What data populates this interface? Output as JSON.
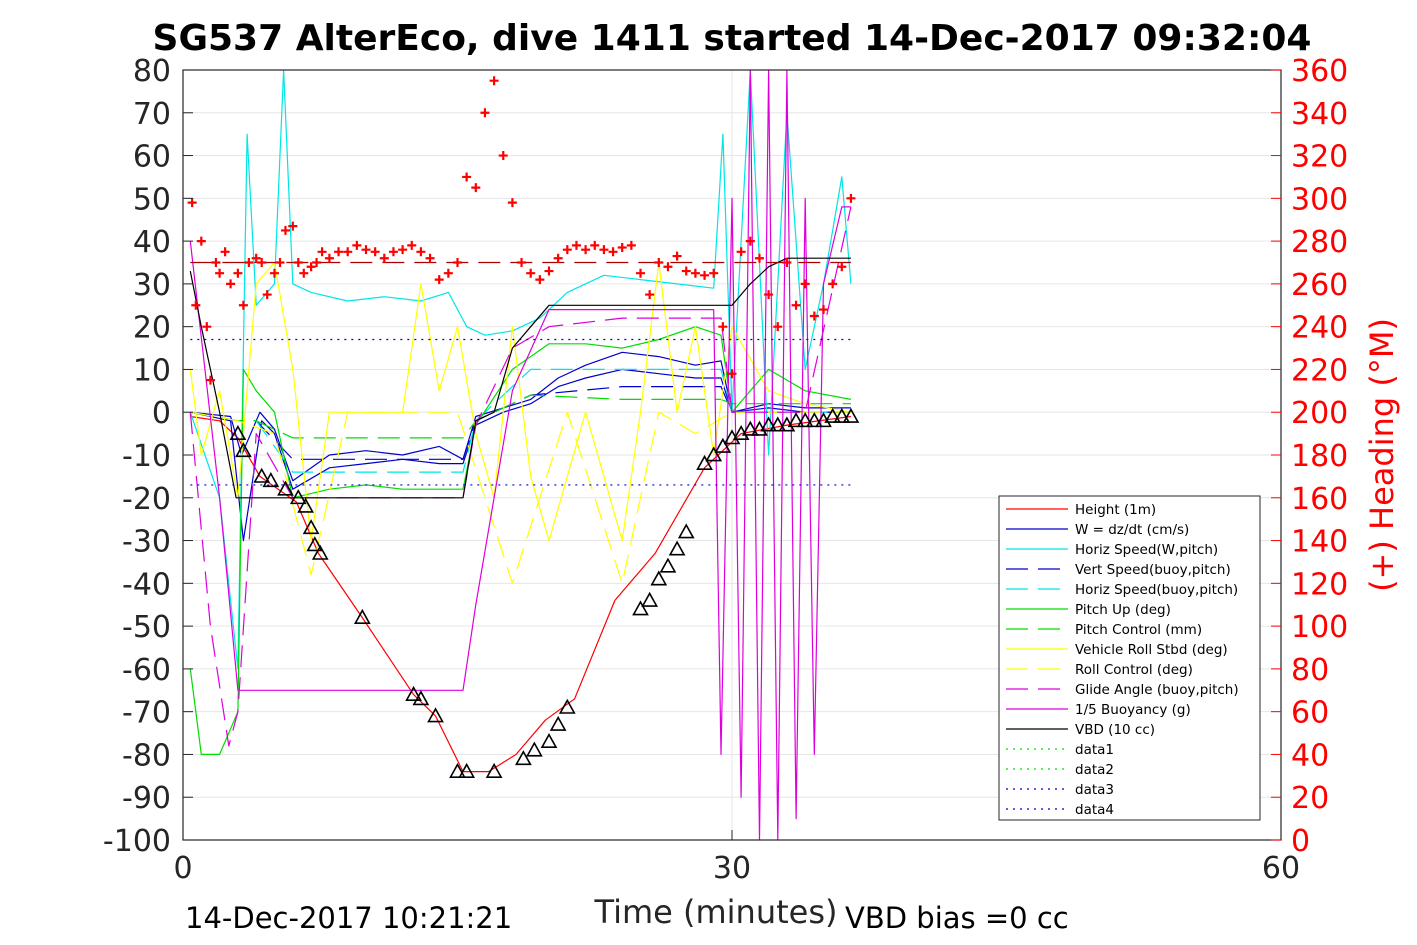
{
  "chart_data": {
    "type": "line",
    "title": "SG537 AlterEco, dive 1411 started 14-Dec-2017 09:32:04",
    "xlabel": "Time (minutes)",
    "ylabel": "",
    "y2label": "(+) Heading (°M)",
    "xlim": [
      0,
      60
    ],
    "ylim": [
      -100,
      80
    ],
    "y2lim": [
      0,
      360
    ],
    "xticks": [
      0,
      30,
      60
    ],
    "yticks": [
      -100,
      -90,
      -80,
      -70,
      -60,
      -50,
      -40,
      -30,
      -20,
      -10,
      0,
      10,
      20,
      30,
      40,
      50,
      60,
      70,
      80
    ],
    "y2ticks": [
      0,
      20,
      40,
      60,
      80,
      100,
      120,
      140,
      160,
      180,
      200,
      220,
      240,
      260,
      280,
      300,
      320,
      340,
      360
    ],
    "footer_left": "14-Dec-2017 10:21:21",
    "footer_right": "VBD bias =0 cc",
    "legend_position": "bottom-right",
    "colors": {
      "right_axis": "#ff0000",
      "height": "#ff0000",
      "w": "#0000cc",
      "horiz_speed": "#00e5e5",
      "pitch": "#00dd00",
      "roll": "#ffff00",
      "glide": "#dd00dd",
      "vbd": "#000000",
      "data12": "#00dd00",
      "data34": "#0000cc"
    },
    "legend": [
      {
        "label": "Height (1m)",
        "color": "#ff0000",
        "style": "solid"
      },
      {
        "label": "W = dz/dt (cm/s)",
        "color": "#0000cc",
        "style": "solid"
      },
      {
        "label": "Horiz Speed(W,pitch)",
        "color": "#00e5e5",
        "style": "solid"
      },
      {
        "label": "Vert Speed(buoy,pitch)",
        "color": "#0000cc",
        "style": "dashed"
      },
      {
        "label": "Horiz Speed(buoy,pitch)",
        "color": "#00e5e5",
        "style": "dashed"
      },
      {
        "label": "Pitch Up (deg)",
        "color": "#00dd00",
        "style": "solid"
      },
      {
        "label": "Pitch Control (mm)",
        "color": "#00dd00",
        "style": "dashed"
      },
      {
        "label": "Vehicle Roll Stbd (deg)",
        "color": "#ffff00",
        "style": "solid"
      },
      {
        "label": "Roll Control (deg)",
        "color": "#ffff00",
        "style": "dashed"
      },
      {
        "label": "Glide Angle (buoy,pitch)",
        "color": "#dd00dd",
        "style": "dashed"
      },
      {
        "label": "1/5 Buoyancy (g)",
        "color": "#dd00dd",
        "style": "solid"
      },
      {
        "label": "VBD (10 cc)",
        "color": "#000000",
        "style": "solid"
      },
      {
        "label": "data1",
        "color": "#00dd00",
        "style": "dotted"
      },
      {
        "label": "data2",
        "color": "#00dd00",
        "style": "dotted"
      },
      {
        "label": "data3",
        "color": "#0000cc",
        "style": "dotted"
      },
      {
        "label": "data4",
        "color": "#0000cc",
        "style": "dotted"
      }
    ],
    "series": [
      {
        "key": "depth_track",
        "color": "#ff0000",
        "style": "solid",
        "x": [
          0.4,
          2.0,
          3.0,
          4.2,
          6.2,
          7.4,
          9.8,
          12.6,
          13.8,
          15.3,
          16.7,
          18.2,
          19.8,
          21.4,
          23.6,
          25.8,
          28.5,
          30.5,
          33.0,
          36.5
        ],
        "y": [
          -1,
          -2,
          -6,
          -15,
          -21,
          -33,
          -48,
          -66,
          -71,
          -84,
          -84,
          -80,
          -72,
          -67,
          -44,
          -33,
          -13,
          -5,
          -3,
          -1
        ]
      },
      {
        "key": "triangle_markers",
        "color": "#000000",
        "style": "markers",
        "x": [
          3.0,
          3.3,
          4.3,
          4.8,
          5.6,
          6.3,
          6.7,
          7.0,
          7.2,
          7.5,
          9.8,
          12.6,
          13.0,
          13.8,
          15.0,
          15.5,
          17.0,
          18.6,
          19.2,
          20.0,
          20.5,
          21.0,
          25.0,
          25.5,
          26.0,
          26.5,
          27.0,
          27.5,
          28.5,
          29.0,
          29.5,
          30.0,
          30.5,
          31.0,
          31.5,
          32.0,
          32.5,
          33.0,
          33.5,
          34.0,
          34.5,
          35.0,
          35.5,
          36.0,
          36.5
        ],
        "y": [
          -5,
          -9,
          -15,
          -16,
          -18,
          -20,
          -22,
          -27,
          -31,
          -33,
          -48,
          -66,
          -67,
          -71,
          -84,
          -84,
          -84,
          -81,
          -79,
          -77,
          -73,
          -69,
          -46,
          -44,
          -39,
          -36,
          -32,
          -28,
          -12,
          -10,
          -8,
          -6,
          -5,
          -4,
          -4,
          -3,
          -3,
          -3,
          -2,
          -2,
          -2,
          -2,
          -1,
          -1,
          -1
        ]
      },
      {
        "key": "w_upper",
        "color": "#0000cc",
        "style": "solid",
        "x": [
          0.4,
          2.6,
          3.2,
          4.2,
          5.0,
          6.0,
          8.0,
          10.0,
          12.0,
          14.0,
          15.3,
          16.0,
          17.5,
          19.0,
          20.5,
          22.0,
          24.0,
          26.0,
          28.0,
          29.4,
          30.0,
          32.0,
          34.0,
          36.5
        ],
        "y": [
          0,
          -1,
          -10,
          0,
          -4,
          -16,
          -10,
          -9,
          -10,
          -8,
          -11,
          -1,
          1,
          3,
          8,
          11,
          14,
          13,
          11,
          12,
          0,
          2,
          1,
          1
        ]
      },
      {
        "key": "w_lower",
        "color": "#0000cc",
        "style": "solid",
        "x": [
          0.4,
          2.6,
          3.3,
          4.3,
          5.0,
          6.0,
          8.0,
          10.0,
          12.0,
          14.0,
          15.3,
          16.0,
          17.5,
          19.0,
          20.5,
          22.0,
          24.0,
          26.0,
          28.0,
          29.4,
          30.0,
          32.0,
          34.0,
          36.5
        ],
        "y": [
          0,
          -2,
          -30,
          -2,
          -5,
          -18,
          -13,
          -12,
          -11,
          -12,
          -12,
          -3,
          0,
          2,
          6,
          8,
          10,
          9,
          8,
          8,
          0,
          1,
          0,
          0
        ]
      },
      {
        "key": "horiz_speed",
        "color": "#00e5e5",
        "style": "solid",
        "x": [
          0.4,
          2.0,
          3.0,
          3.5,
          4.0,
          5.0,
          5.5,
          6.0,
          7.0,
          9.0,
          11.0,
          13.0,
          14.5,
          15.5,
          16.5,
          18.0,
          19.5,
          21.0,
          23.0,
          25.0,
          27.0,
          29.0,
          29.5,
          30.0,
          31.0,
          32.0,
          33.0,
          34.0,
          35.0,
          36.0,
          36.5
        ],
        "y": [
          0,
          -20,
          -60,
          65,
          25,
          30,
          80,
          30,
          28,
          26,
          27,
          26,
          28,
          20,
          18,
          19,
          22,
          28,
          32,
          31,
          30,
          29,
          65,
          0,
          80,
          -10,
          70,
          10,
          30,
          55,
          30
        ]
      },
      {
        "key": "vert_speed_buoy",
        "color": "#0000cc",
        "style": "dashed",
        "x": [
          0.4,
          3.0,
          4.0,
          6.0,
          10.0,
          15.3,
          16.0,
          19.0,
          24.0,
          29.4,
          30.0,
          36.5
        ],
        "y": [
          0,
          -2,
          -2,
          -11,
          -11,
          -11,
          -2,
          4,
          6,
          6,
          0,
          0
        ]
      },
      {
        "key": "horiz_speed_buoy",
        "color": "#00e5e5",
        "style": "dashed",
        "x": [
          0.4,
          3.0,
          4.0,
          6.0,
          10.0,
          15.3,
          16.0,
          19.0,
          24.0,
          29.4,
          30.0,
          36.5
        ],
        "y": [
          0,
          -2,
          -2,
          -14,
          -14,
          -14,
          -2,
          10,
          10,
          10,
          0,
          0
        ]
      },
      {
        "key": "pitch_up",
        "color": "#00dd00",
        "style": "solid",
        "x": [
          0.4,
          1.0,
          2.0,
          3.0,
          3.3,
          4.0,
          5.0,
          6.0,
          8.0,
          10.0,
          12.0,
          14.0,
          15.3,
          16.0,
          18.0,
          20.0,
          22.0,
          24.0,
          26.0,
          28.0,
          29.4,
          30.0,
          32.0,
          34.0,
          36.5
        ],
        "y": [
          -60,
          -80,
          -80,
          -70,
          10,
          5,
          0,
          -20,
          -18,
          -17,
          -18,
          -18,
          -18,
          -3,
          10,
          16,
          16,
          15,
          17,
          20,
          18,
          0,
          10,
          5,
          3
        ]
      },
      {
        "key": "pitch_control",
        "color": "#00dd00",
        "style": "dashed",
        "x": [
          0.4,
          3.0,
          4.0,
          6.0,
          10.0,
          15.3,
          16.0,
          19.0,
          24.0,
          29.4,
          30.0,
          36.5
        ],
        "y": [
          0,
          -2,
          -2,
          -6,
          -6,
          -6,
          -2,
          4,
          3,
          3,
          2,
          2
        ]
      },
      {
        "key": "vehicle_roll",
        "color": "#ffff00",
        "style": "solid",
        "x": [
          0.4,
          1.0,
          2.0,
          3.0,
          4.0,
          5.0,
          6.0,
          7.0,
          8.0,
          10.0,
          12.0,
          13.0,
          14.0,
          15.0,
          16.0,
          17.0,
          18.0,
          19.0,
          20.0,
          22.0,
          24.0,
          25.0,
          26.0,
          27.0,
          28.0,
          29.0,
          30.0,
          32.0,
          34.0,
          36.5
        ],
        "y": [
          10,
          -10,
          5,
          -20,
          30,
          35,
          10,
          -30,
          0,
          0,
          0,
          30,
          5,
          20,
          -5,
          -20,
          20,
          -15,
          -30,
          0,
          -30,
          0,
          35,
          0,
          20,
          -10,
          20,
          5,
          2,
          0
        ]
      },
      {
        "key": "roll_control",
        "color": "#ffff00",
        "style": "dashed",
        "x": [
          0.4,
          3.0,
          5.0,
          7.0,
          9.0,
          15.0,
          18.0,
          21.0,
          24.0,
          26.0,
          28.0,
          30.0,
          36.5
        ],
        "y": [
          0,
          -2,
          -5,
          -38,
          0,
          0,
          -40,
          0,
          -40,
          0,
          -5,
          0,
          0
        ]
      },
      {
        "key": "glide_angle",
        "color": "#dd00dd",
        "style": "dashed",
        "x": [
          0.4,
          1.5,
          2.5,
          3.0,
          4.0,
          6.0,
          8.0,
          10.0,
          15.3,
          16.0,
          18.0,
          20.0,
          24.0,
          29.4,
          30.0,
          34.0,
          36.5
        ],
        "y": [
          0,
          -50,
          -78,
          -70,
          -5,
          -20,
          -20,
          -20,
          -20,
          -3,
          15,
          20,
          22,
          22,
          0,
          0,
          48
        ]
      },
      {
        "key": "buoyancy",
        "color": "#dd00dd",
        "style": "solid",
        "x": [
          0.4,
          2.0,
          3.0,
          4.0,
          6.0,
          10.0,
          15.3,
          16.0,
          18.0,
          20.0,
          24.0,
          29.0,
          29.4,
          30.0,
          30.5,
          31.0,
          31.5,
          32.0,
          32.5,
          33.0,
          33.5,
          34.0,
          34.5,
          35.0,
          36.0,
          36.5
        ],
        "y": [
          40,
          -20,
          -65,
          -65,
          -65,
          -65,
          -65,
          -45,
          5,
          24,
          24,
          24,
          -80,
          50,
          -90,
          80,
          -100,
          80,
          -100,
          80,
          -95,
          50,
          -80,
          30,
          48,
          48
        ]
      },
      {
        "key": "vbd",
        "color": "#000000",
        "style": "solid",
        "x": [
          0.4,
          1.0,
          2.0,
          2.9,
          4.0,
          6.0,
          10.0,
          15.3,
          16.0,
          17.0,
          18.0,
          19.0,
          20.0,
          22.0,
          24.0,
          26.0,
          28.0,
          29.4,
          30.0,
          31.0,
          32.0,
          33.0,
          34.0,
          36.5
        ],
        "y": [
          33,
          20,
          0,
          -20,
          -20,
          -20,
          -20,
          -20,
          -2,
          0,
          15,
          20,
          25,
          25,
          25,
          25,
          25,
          25,
          25,
          30,
          34,
          36,
          36,
          36
        ]
      },
      {
        "key": "data_lines",
        "color": "#0000cc",
        "style": "dotted",
        "x": [
          0.4,
          36.5
        ],
        "y_values": [
          17,
          -17
        ]
      }
    ],
    "heading_points": {
      "x": [
        0.5,
        0.7,
        1.0,
        1.3,
        1.5,
        1.8,
        2.0,
        2.3,
        2.6,
        3.0,
        3.3,
        3.6,
        4.0,
        4.3,
        4.6,
        5.0,
        5.3,
        5.6,
        6.0,
        6.3,
        6.6,
        7.0,
        7.3,
        7.6,
        8.0,
        8.5,
        9.0,
        9.5,
        10.0,
        10.5,
        11.0,
        11.5,
        12.0,
        12.5,
        13.0,
        13.5,
        14.0,
        14.5,
        15.0,
        15.5,
        16.0,
        16.5,
        17.0,
        17.5,
        18.0,
        18.5,
        19.0,
        19.5,
        20.0,
        20.5,
        21.0,
        21.5,
        22.0,
        22.5,
        23.0,
        23.5,
        24.0,
        24.5,
        25.0,
        25.5,
        26.0,
        26.5,
        27.0,
        27.5,
        28.0,
        28.5,
        29.0,
        29.5,
        30.0,
        30.5,
        31.0,
        31.5,
        32.0,
        32.5,
        33.0,
        33.5,
        34.0,
        34.5,
        35.0,
        35.5,
        36.0,
        36.5
      ],
      "y": [
        298,
        250,
        280,
        240,
        215,
        270,
        265,
        275,
        260,
        265,
        250,
        270,
        272,
        270,
        255,
        265,
        270,
        285,
        287,
        270,
        265,
        268,
        270,
        275,
        272,
        275,
        275,
        278,
        276,
        275,
        272,
        275,
        276,
        278,
        275,
        272,
        262,
        265,
        270,
        310,
        305,
        340,
        355,
        320,
        298,
        270,
        265,
        262,
        266,
        272,
        276,
        278,
        276,
        278,
        276,
        275,
        277,
        278,
        265,
        255,
        270,
        268,
        273,
        266,
        265,
        264,
        265,
        240,
        218,
        275,
        280,
        272,
        255,
        240,
        270,
        250,
        260,
        245,
        248,
        260,
        268,
        300
      ]
    }
  }
}
